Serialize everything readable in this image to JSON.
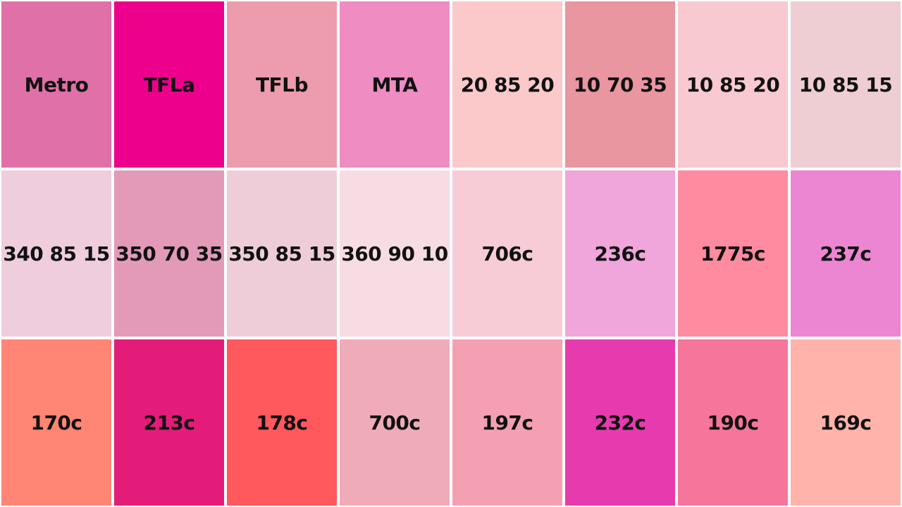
{
  "swatches": [
    {
      "label": "Metro",
      "color": "#E070A8"
    },
    {
      "label": "TFLa",
      "color": "#EC008C"
    },
    {
      "label": "TFLb",
      "color": "#EC9CAC"
    },
    {
      "label": "MTA",
      "color": "#EF8CC2"
    },
    {
      "label": "20 85 20",
      "color": "#FBC9C9"
    },
    {
      "label": "10 70 35",
      "color": "#E996A1"
    },
    {
      "label": "10 85 20",
      "color": "#F8C9D1"
    },
    {
      "label": "10 85 15",
      "color": "#EECDD3"
    },
    {
      "label": "340 85 15",
      "color": "#EFCDDD"
    },
    {
      "label": "350 70 35",
      "color": "#E39AB9"
    },
    {
      "label": "350 85 15",
      "color": "#EECDD9"
    },
    {
      "label": "360 90 10",
      "color": "#F7DCE3"
    },
    {
      "label": "706c",
      "color": "#F8CCD6"
    },
    {
      "label": "236c",
      "color": "#F0A6DA"
    },
    {
      "label": "1775c",
      "color": "#FF8BA0"
    },
    {
      "label": "237c",
      "color": "#EC86D2"
    },
    {
      "label": "170c",
      "color": "#FF8674"
    },
    {
      "label": "213c",
      "color": "#E31C79"
    },
    {
      "label": "178c",
      "color": "#FF585D"
    },
    {
      "label": "700c",
      "color": "#F0ABB9"
    },
    {
      "label": "197c",
      "color": "#F59FB3"
    },
    {
      "label": "232c",
      "color": "#E63BAE"
    },
    {
      "label": "190c",
      "color": "#F6759A"
    },
    {
      "label": "169c",
      "color": "#FFB3AA"
    }
  ]
}
